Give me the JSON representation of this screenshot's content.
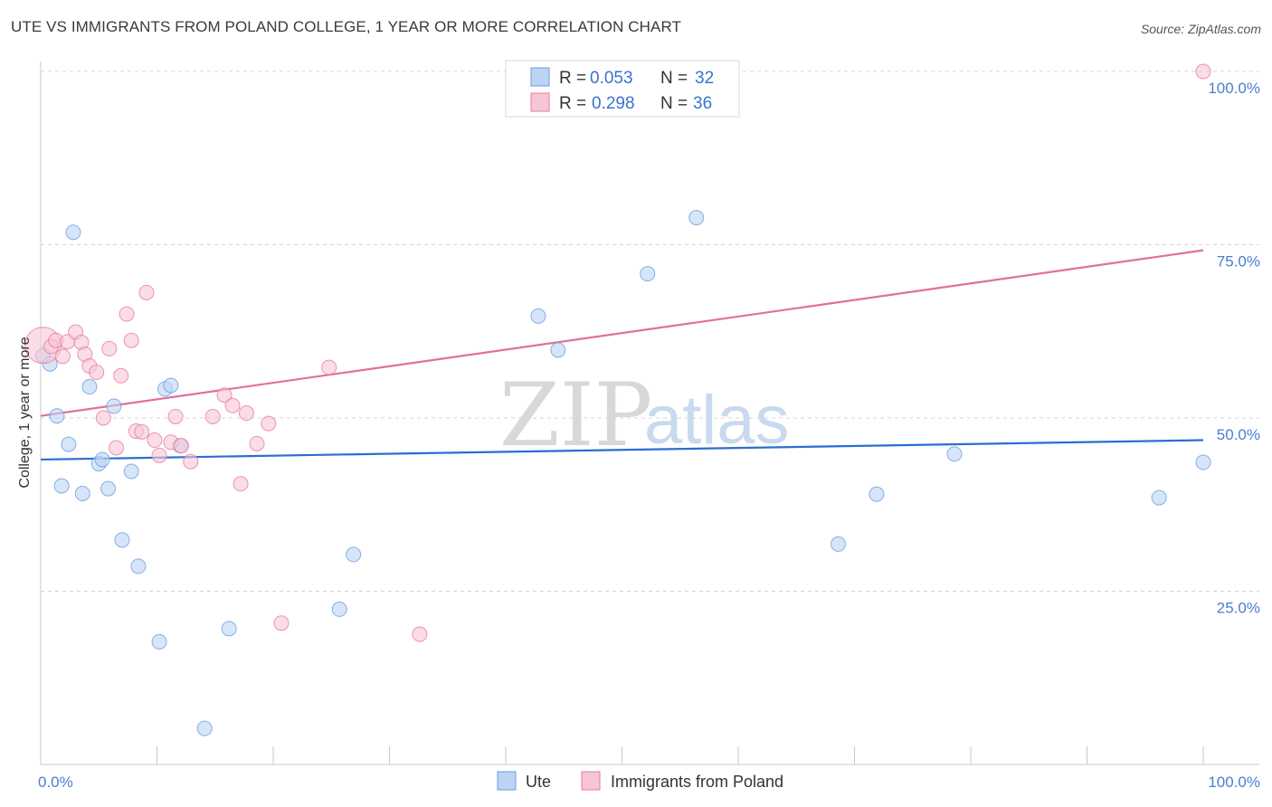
{
  "title": "UTE VS IMMIGRANTS FROM POLAND COLLEGE, 1 YEAR OR MORE CORRELATION CHART",
  "source": "Source: ZipAtlas.com",
  "colors": {
    "ute": "#6a9ee0",
    "ute_fill": "#bcd4f4",
    "poland": "#e87aa0",
    "poland_fill": "#f7c6d6",
    "ute_line": "#2a6fcf",
    "poland_line": "#e0709a",
    "grid": "#d5d5d5",
    "tick_label": "#4a7fd0"
  },
  "watermark": {
    "zip": "ZIP",
    "atlas": "atlas"
  },
  "chart_data": {
    "type": "scatter",
    "title": "UTE VS IMMIGRANTS FROM POLAND COLLEGE, 1 YEAR OR MORE CORRELATION CHART",
    "xlabel": "",
    "ylabel": "College, 1 year or more",
    "xlim": [
      0,
      100
    ],
    "ylim": [
      0,
      100
    ],
    "x_tick_labels": [
      "0.0%",
      "100.0%"
    ],
    "y_ticks": [
      {
        "value": 25,
        "label": "25.0%"
      },
      {
        "value": 50,
        "label": "50.0%"
      },
      {
        "value": 75,
        "label": "75.0%"
      },
      {
        "value": 100,
        "label": "100.0%"
      }
    ],
    "grid": "horizontal dashed",
    "legend_placement": "top-center",
    "series": [
      {
        "name": "Ute",
        "legend": {
          "r_label": "R =",
          "r": "0.053",
          "n_label": "N =",
          "n": "32"
        },
        "trend": {
          "x": [
            0,
            100
          ],
          "y": [
            44.0,
            46.8
          ]
        },
        "points": [
          {
            "x": 0.2,
            "y": 59
          },
          {
            "x": 0.8,
            "y": 57.8
          },
          {
            "x": 1.4,
            "y": 50.3
          },
          {
            "x": 1.8,
            "y": 40.2
          },
          {
            "x": 2.4,
            "y": 46.2
          },
          {
            "x": 2.8,
            "y": 76.8
          },
          {
            "x": 3.6,
            "y": 39.1
          },
          {
            "x": 4.2,
            "y": 54.5
          },
          {
            "x": 5.0,
            "y": 43.4
          },
          {
            "x": 5.3,
            "y": 44.0
          },
          {
            "x": 5.8,
            "y": 39.8
          },
          {
            "x": 6.3,
            "y": 51.7
          },
          {
            "x": 7.0,
            "y": 32.4
          },
          {
            "x": 7.8,
            "y": 42.3
          },
          {
            "x": 8.4,
            "y": 28.6
          },
          {
            "x": 10.2,
            "y": 17.7
          },
          {
            "x": 10.7,
            "y": 54.2
          },
          {
            "x": 11.2,
            "y": 54.7
          },
          {
            "x": 12.0,
            "y": 46.0
          },
          {
            "x": 14.1,
            "y": 5.2
          },
          {
            "x": 16.2,
            "y": 19.6
          },
          {
            "x": 25.7,
            "y": 22.4
          },
          {
            "x": 26.9,
            "y": 30.3
          },
          {
            "x": 42.8,
            "y": 64.7
          },
          {
            "x": 44.5,
            "y": 59.8
          },
          {
            "x": 52.2,
            "y": 70.8
          },
          {
            "x": 56.4,
            "y": 78.9
          },
          {
            "x": 68.6,
            "y": 31.8
          },
          {
            "x": 71.9,
            "y": 39.0
          },
          {
            "x": 78.6,
            "y": 44.8
          },
          {
            "x": 96.2,
            "y": 38.5
          },
          {
            "x": 100,
            "y": 43.6
          }
        ]
      },
      {
        "name": "Immigrants from Poland",
        "legend": {
          "r_label": "R =",
          "r": "0.298",
          "n_label": "N =",
          "n": "36"
        },
        "trend": {
          "x": [
            0,
            100
          ],
          "y": [
            50.3,
            74.2
          ]
        },
        "points": [
          {
            "x": 0.2,
            "y": 60.5,
            "big": true
          },
          {
            "x": 0.9,
            "y": 60.3
          },
          {
            "x": 1.3,
            "y": 61.2
          },
          {
            "x": 1.9,
            "y": 58.9
          },
          {
            "x": 2.3,
            "y": 61.0
          },
          {
            "x": 3.0,
            "y": 62.4
          },
          {
            "x": 3.5,
            "y": 60.9
          },
          {
            "x": 3.8,
            "y": 59.2
          },
          {
            "x": 4.2,
            "y": 57.5
          },
          {
            "x": 4.8,
            "y": 56.6
          },
          {
            "x": 5.4,
            "y": 50.0
          },
          {
            "x": 5.9,
            "y": 60.0
          },
          {
            "x": 6.5,
            "y": 45.7
          },
          {
            "x": 6.9,
            "y": 56.1
          },
          {
            "x": 7.4,
            "y": 65.0
          },
          {
            "x": 7.8,
            "y": 61.2
          },
          {
            "x": 8.2,
            "y": 48.1
          },
          {
            "x": 8.7,
            "y": 48.0
          },
          {
            "x": 9.1,
            "y": 68.1
          },
          {
            "x": 9.8,
            "y": 46.8
          },
          {
            "x": 10.2,
            "y": 44.6
          },
          {
            "x": 11.2,
            "y": 46.5
          },
          {
            "x": 11.6,
            "y": 50.2
          },
          {
            "x": 12.1,
            "y": 46.0
          },
          {
            "x": 12.9,
            "y": 43.7
          },
          {
            "x": 14.8,
            "y": 50.2
          },
          {
            "x": 15.8,
            "y": 53.3
          },
          {
            "x": 16.5,
            "y": 51.8
          },
          {
            "x": 17.2,
            "y": 40.5
          },
          {
            "x": 17.7,
            "y": 50.7
          },
          {
            "x": 18.6,
            "y": 46.3
          },
          {
            "x": 19.6,
            "y": 49.2
          },
          {
            "x": 20.7,
            "y": 20.4
          },
          {
            "x": 24.8,
            "y": 57.3
          },
          {
            "x": 32.6,
            "y": 18.8
          },
          {
            "x": 100,
            "y": 100
          }
        ]
      }
    ]
  }
}
